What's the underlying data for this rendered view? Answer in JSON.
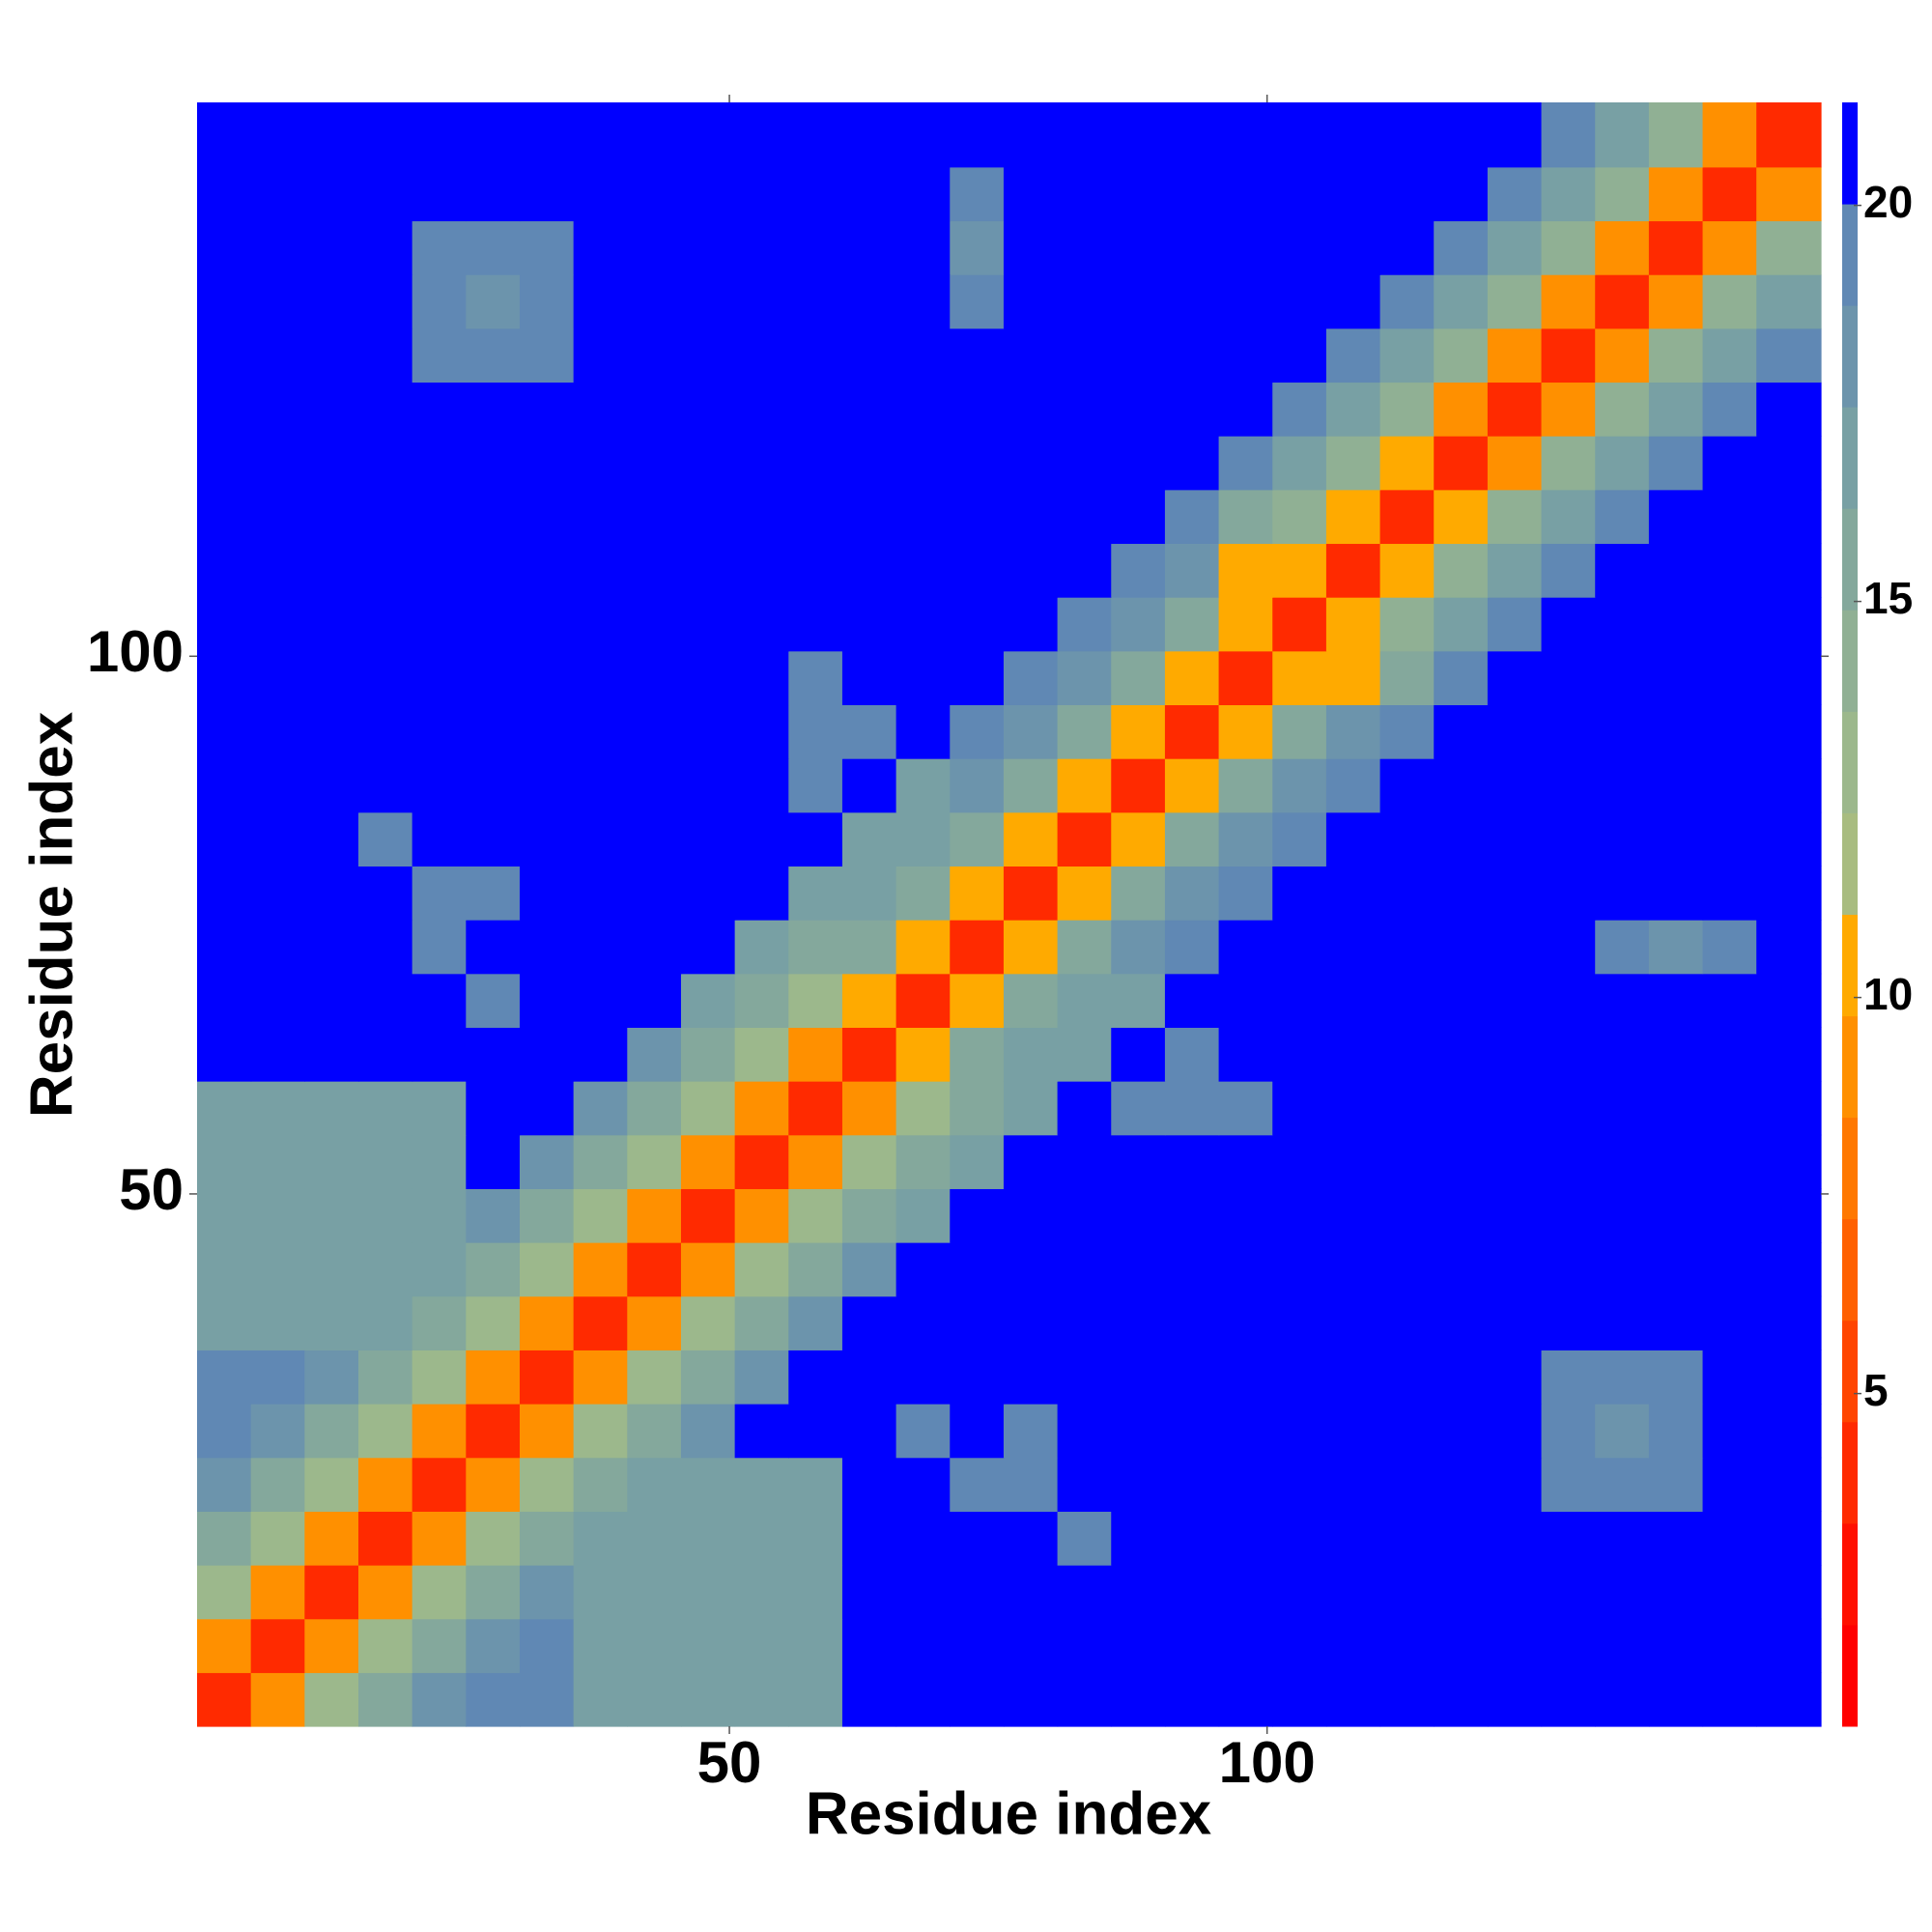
{
  "chart_data": {
    "type": "heatmap",
    "xlabel": "Residue index",
    "ylabel": "Residue index",
    "bins": [
      0.5,
      5.5,
      10.5,
      15.5,
      20.5,
      25.5,
      30.5,
      35.5,
      40.5,
      45.5,
      50.5,
      55.5,
      60.5,
      65.5,
      70.5,
      75.5,
      80.5,
      85.5,
      90.5,
      95.5,
      100.5,
      105.5,
      110.5,
      115.5,
      120.5,
      125.5,
      130.5,
      135.5,
      140.5,
      145.5,
      151.5
    ],
    "xlim": [
      0.5,
      151.5
    ],
    "ylim": [
      0.5,
      151.5
    ],
    "xticks": [
      50,
      100
    ],
    "yticks": [
      50,
      100
    ],
    "clim": [
      0.8,
      21.3
    ],
    "cticks": [
      5,
      10,
      15,
      20
    ],
    "colors": [
      "#ff0000",
      "#ff1000",
      "#ff2a00",
      "#ff4500",
      "#ff6000",
      "#ff7800",
      "#ff9000",
      "#ffaa00",
      "#a8bc80",
      "#9cb88c",
      "#90b094",
      "#84a89c",
      "#78a0a4",
      "#6c94ac",
      "#6088b4",
      "#0000ff"
    ],
    "z": [
      [
        4,
        9,
        13,
        16,
        18,
        19,
        19,
        17,
        17,
        17,
        17,
        17,
        21,
        21,
        21,
        21,
        21,
        21,
        21,
        21,
        21,
        21,
        21,
        21,
        21,
        21,
        21,
        21,
        21,
        21
      ],
      [
        9,
        4,
        9,
        13,
        16,
        18,
        19,
        17,
        17,
        17,
        17,
        17,
        21,
        21,
        21,
        21,
        21,
        21,
        21,
        21,
        21,
        21,
        21,
        21,
        21,
        21,
        21,
        21,
        21,
        21
      ],
      [
        13,
        9,
        4,
        9,
        13,
        16,
        18,
        17,
        17,
        17,
        17,
        17,
        21,
        21,
        21,
        21,
        21,
        21,
        21,
        21,
        21,
        21,
        21,
        21,
        21,
        21,
        21,
        21,
        21,
        21
      ],
      [
        16,
        13,
        9,
        4,
        9,
        13,
        16,
        17,
        17,
        17,
        17,
        17,
        21,
        21,
        21,
        21,
        19,
        21,
        21,
        21,
        21,
        21,
        21,
        21,
        21,
        21,
        21,
        21,
        21,
        21
      ],
      [
        18,
        16,
        13,
        9,
        4,
        9,
        13,
        16,
        17,
        17,
        17,
        17,
        21,
        21,
        19,
        19,
        21,
        21,
        21,
        21,
        21,
        21,
        21,
        21,
        21,
        19,
        19,
        19,
        21,
        21
      ],
      [
        19,
        18,
        16,
        13,
        9,
        4,
        9,
        13,
        16,
        18,
        21,
        21,
        21,
        19,
        21,
        19,
        21,
        21,
        21,
        21,
        21,
        21,
        21,
        21,
        21,
        19,
        18,
        19,
        21,
        21
      ],
      [
        19,
        19,
        18,
        16,
        13,
        9,
        4,
        9,
        13,
        16,
        18,
        21,
        21,
        21,
        21,
        21,
        21,
        21,
        21,
        21,
        21,
        21,
        21,
        21,
        21,
        19,
        19,
        19,
        21,
        21
      ],
      [
        17,
        17,
        17,
        17,
        16,
        13,
        9,
        4,
        9,
        13,
        16,
        18,
        21,
        21,
        21,
        21,
        21,
        21,
        21,
        21,
        21,
        21,
        21,
        21,
        21,
        21,
        21,
        21,
        21,
        21
      ],
      [
        17,
        17,
        17,
        17,
        17,
        16,
        13,
        9,
        4,
        9,
        13,
        16,
        18,
        21,
        21,
        21,
        21,
        21,
        21,
        21,
        21,
        21,
        21,
        21,
        21,
        21,
        21,
        21,
        21,
        21
      ],
      [
        17,
        17,
        17,
        17,
        17,
        18,
        16,
        13,
        9,
        4,
        9,
        13,
        16,
        17,
        21,
        21,
        21,
        21,
        21,
        21,
        21,
        21,
        21,
        21,
        21,
        21,
        21,
        21,
        21,
        21
      ],
      [
        17,
        17,
        17,
        17,
        17,
        21,
        18,
        16,
        13,
        9,
        4,
        9,
        13,
        16,
        17,
        21,
        21,
        21,
        21,
        21,
        21,
        21,
        21,
        21,
        21,
        21,
        21,
        21,
        21,
        21
      ],
      [
        17,
        17,
        17,
        17,
        17,
        21,
        21,
        18,
        16,
        13,
        9,
        4,
        9,
        13,
        16,
        17,
        21,
        19,
        19,
        19,
        21,
        21,
        21,
        21,
        21,
        21,
        21,
        21,
        21,
        21
      ],
      [
        21,
        21,
        21,
        21,
        21,
        21,
        21,
        21,
        18,
        16,
        13,
        9,
        4,
        10,
        15,
        17,
        17,
        21,
        19,
        21,
        21,
        21,
        21,
        21,
        21,
        21,
        21,
        21,
        21,
        21
      ],
      [
        21,
        21,
        21,
        21,
        21,
        19,
        21,
        21,
        21,
        17,
        16,
        13,
        10,
        4,
        10,
        15,
        17,
        17,
        21,
        21,
        21,
        21,
        21,
        21,
        21,
        21,
        21,
        21,
        21,
        21
      ],
      [
        21,
        21,
        21,
        21,
        19,
        21,
        21,
        21,
        21,
        21,
        17,
        16,
        15,
        10,
        4,
        10,
        15,
        18,
        20,
        21,
        21,
        21,
        21,
        21,
        21,
        21,
        19,
        18,
        19,
        21
      ],
      [
        21,
        21,
        21,
        21,
        19,
        19,
        21,
        21,
        21,
        21,
        21,
        17,
        17,
        15,
        10,
        4,
        10,
        15,
        18,
        20,
        21,
        21,
        21,
        21,
        21,
        21,
        21,
        21,
        21,
        21
      ],
      [
        21,
        21,
        21,
        19,
        21,
        21,
        21,
        21,
        21,
        21,
        21,
        21,
        17,
        17,
        15,
        10,
        4,
        10,
        15,
        18,
        20,
        21,
        21,
        21,
        21,
        21,
        21,
        21,
        21,
        21
      ],
      [
        21,
        21,
        21,
        21,
        21,
        21,
        21,
        21,
        21,
        21,
        21,
        19,
        21,
        17,
        18,
        15,
        10,
        4,
        10,
        15,
        18,
        20,
        21,
        21,
        21,
        21,
        21,
        21,
        21,
        21
      ],
      [
        21,
        21,
        21,
        21,
        21,
        21,
        21,
        21,
        21,
        21,
        21,
        19,
        19,
        21,
        20,
        18,
        15,
        10,
        4,
        10,
        15,
        18,
        20,
        21,
        21,
        21,
        21,
        21,
        21,
        21
      ],
      [
        21,
        21,
        21,
        21,
        21,
        21,
        21,
        21,
        21,
        21,
        21,
        19,
        21,
        21,
        21,
        20,
        18,
        15,
        10,
        4,
        10,
        11,
        15,
        19,
        21,
        21,
        21,
        21,
        21,
        21
      ],
      [
        21,
        21,
        21,
        21,
        21,
        21,
        21,
        21,
        21,
        21,
        21,
        21,
        21,
        21,
        21,
        21,
        20,
        18,
        15,
        10,
        4,
        10,
        14,
        17,
        20,
        21,
        21,
        21,
        21,
        21
      ],
      [
        21,
        21,
        21,
        21,
        21,
        21,
        21,
        21,
        21,
        21,
        21,
        21,
        21,
        21,
        21,
        21,
        21,
        20,
        18,
        11,
        10,
        4,
        10,
        14,
        17,
        20,
        21,
        21,
        21,
        21
      ],
      [
        21,
        21,
        21,
        21,
        21,
        21,
        21,
        21,
        21,
        21,
        21,
        21,
        21,
        21,
        21,
        21,
        21,
        21,
        20,
        15,
        14,
        10,
        4,
        10,
        14,
        17,
        19,
        21,
        21,
        21
      ],
      [
        21,
        21,
        21,
        21,
        21,
        21,
        21,
        21,
        21,
        21,
        21,
        21,
        21,
        21,
        21,
        21,
        21,
        21,
        21,
        19,
        17,
        14,
        10,
        4,
        9,
        14,
        17,
        19,
        21,
        21
      ],
      [
        21,
        21,
        21,
        21,
        21,
        21,
        21,
        21,
        21,
        21,
        21,
        21,
        21,
        21,
        21,
        21,
        21,
        21,
        21,
        21,
        20,
        17,
        14,
        9,
        4,
        9,
        14,
        17,
        19,
        21
      ],
      [
        21,
        21,
        21,
        21,
        19,
        19,
        19,
        21,
        21,
        21,
        21,
        21,
        21,
        21,
        21,
        21,
        21,
        21,
        21,
        21,
        21,
        20,
        17,
        14,
        9,
        4,
        9,
        14,
        17,
        19
      ],
      [
        21,
        21,
        21,
        21,
        19,
        18,
        19,
        21,
        21,
        21,
        21,
        21,
        21,
        21,
        19,
        21,
        21,
        21,
        21,
        21,
        21,
        21,
        19,
        17,
        14,
        9,
        4,
        9,
        14,
        17
      ],
      [
        21,
        21,
        21,
        21,
        19,
        19,
        19,
        21,
        21,
        21,
        21,
        21,
        21,
        21,
        18,
        21,
        21,
        21,
        21,
        21,
        21,
        21,
        21,
        19,
        17,
        14,
        9,
        4,
        9,
        14
      ],
      [
        21,
        21,
        21,
        21,
        21,
        21,
        21,
        21,
        21,
        21,
        21,
        21,
        21,
        21,
        19,
        21,
        21,
        21,
        21,
        21,
        21,
        21,
        21,
        21,
        19,
        17,
        14,
        9,
        4,
        9
      ],
      [
        21,
        21,
        21,
        21,
        21,
        21,
        21,
        21,
        21,
        21,
        21,
        21,
        21,
        21,
        21,
        21,
        21,
        21,
        21,
        21,
        21,
        21,
        21,
        21,
        21,
        19,
        17,
        14,
        9,
        4
      ]
    ]
  }
}
